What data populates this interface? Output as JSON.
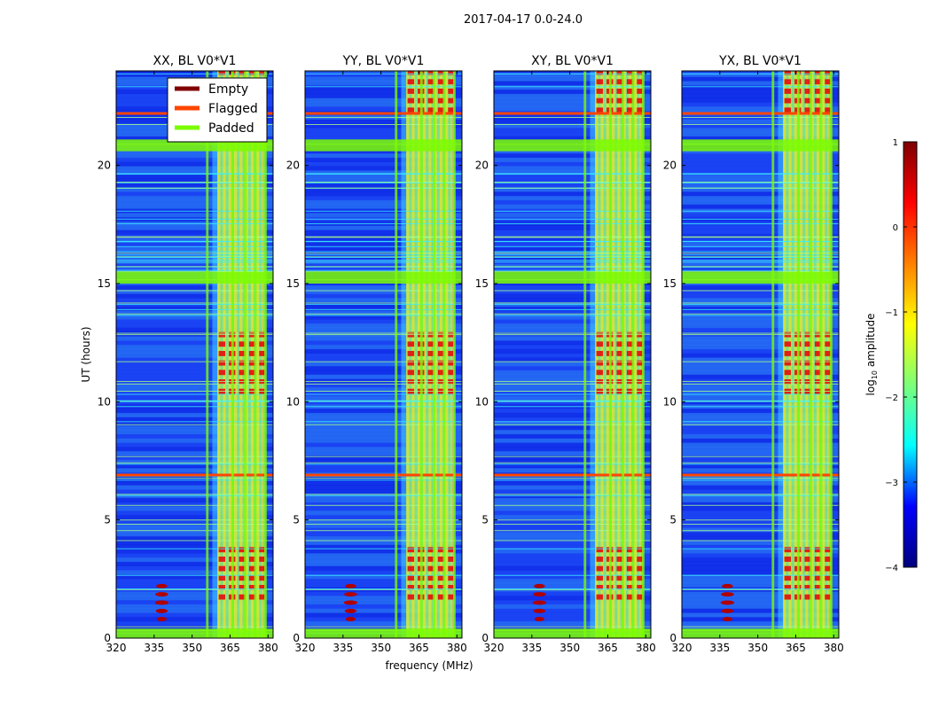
{
  "figure": {
    "suptitle": "2017-04-17 0.0-24.0",
    "xlabel": "frequency (MHz)",
    "ylabel": "UT (hours)"
  },
  "legend": {
    "entries": [
      {
        "label": "Empty",
        "color": "#800000"
      },
      {
        "label": "Flagged",
        "color": "#ff4500"
      },
      {
        "label": "Padded",
        "color": "#7cfc00"
      }
    ]
  },
  "colorbar": {
    "label_prefix": "log",
    "label_sub": "10",
    "label_suffix": " amplitude",
    "range": [
      -4,
      1
    ],
    "ticks": [
      {
        "value": 1,
        "label": "1"
      },
      {
        "value": 0,
        "label": "0"
      },
      {
        "value": -1,
        "label": "−1"
      },
      {
        "value": -2,
        "label": "−2"
      },
      {
        "value": -3,
        "label": "−3"
      },
      {
        "value": -4,
        "label": "−4"
      }
    ],
    "colors": [
      "#00007f",
      "#0000ff",
      "#00ffff",
      "#7cff79",
      "#ffff00",
      "#ff8000",
      "#ff0000",
      "#7f0000"
    ]
  },
  "chart_data": {
    "type": "heatmap",
    "xlim": [
      320,
      382
    ],
    "ylim": [
      0,
      24
    ],
    "xticks": [
      320,
      335,
      350,
      365,
      380
    ],
    "yticks": [
      0,
      5,
      10,
      15,
      20
    ],
    "panels": [
      {
        "title": "XX, BL V0*V1"
      },
      {
        "title": "YY, BL V0*V1"
      },
      {
        "title": "XY, BL V0*V1"
      },
      {
        "title": "YX, BL V0*V1"
      }
    ],
    "padded_frequency_ranges_mhz": [
      [
        355.5,
        356.5
      ],
      [
        365.5,
        366.5
      ],
      [
        370.5,
        371.5
      ],
      [
        374.5,
        375.5
      ],
      [
        378.5,
        379.5
      ]
    ],
    "padded_time_ranges_hours": [
      [
        0,
        0.4
      ],
      [
        15.0,
        15.5
      ],
      [
        20.6,
        21.1
      ]
    ],
    "flagged_time_hours": [
      6.9,
      22.2
    ],
    "bright_band_mhz": [
      360,
      378
    ],
    "bright_time_ranges_hours": [
      [
        1.6,
        3.8
      ],
      [
        10.3,
        12.8
      ],
      [
        22.2,
        23.9
      ]
    ],
    "rfi_source_mhz": 338,
    "rfi_time_ranges_hours": [
      [
        0.8,
        2.5
      ]
    ]
  }
}
